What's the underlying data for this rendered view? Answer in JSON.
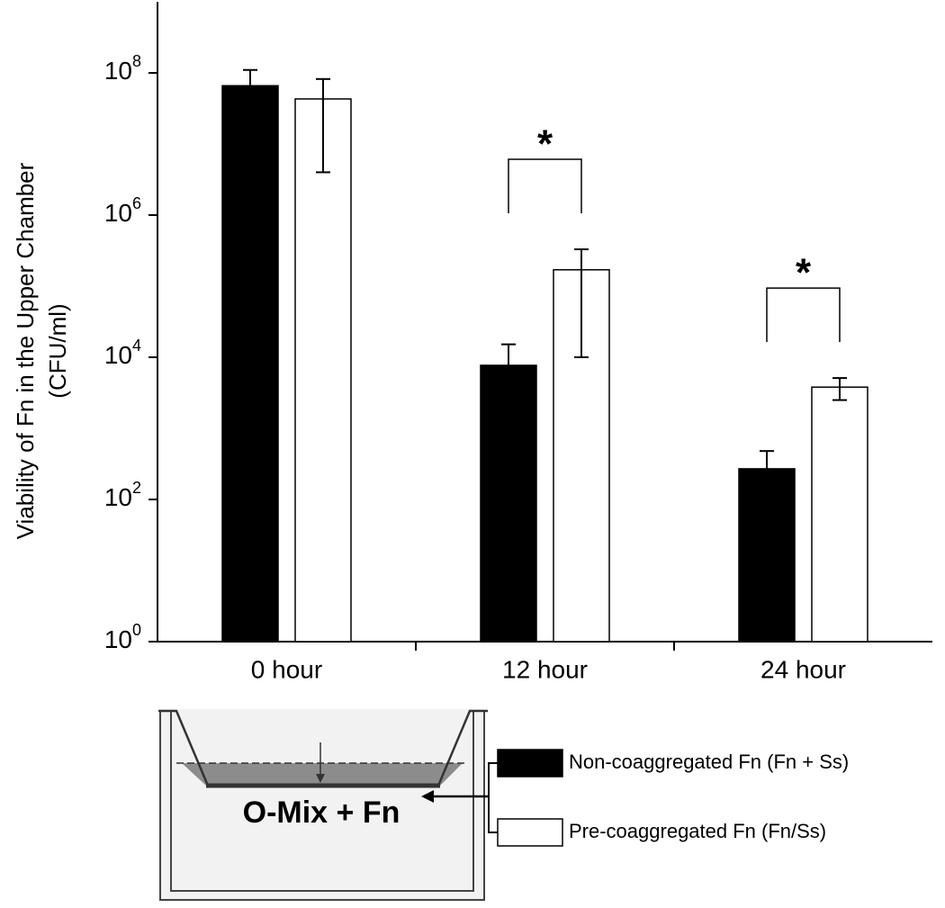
{
  "chart_data": {
    "type": "bar",
    "y_label": [
      "Viability of Fn in the Upper Chamber",
      "(CFU/ml)"
    ],
    "categories": [
      "0 hour",
      "12 hour",
      "24 hour"
    ],
    "log_scale": true,
    "ylim": [
      1,
      1000000000
    ],
    "yticks": [
      {
        "value": 1,
        "label": "10^0"
      },
      {
        "value": 100,
        "label": "10^2"
      },
      {
        "value": 10000,
        "label": "10^4"
      },
      {
        "value": 1000000,
        "label": "10^6"
      },
      {
        "value": 100000000,
        "label": "10^8"
      }
    ],
    "series": [
      {
        "name": "Non-coaggregated Fn (Fn + Ss)",
        "color": "#000000",
        "values": [
          66000000,
          7700,
          270
        ],
        "errors": [
          44000000,
          7500,
          210
        ]
      },
      {
        "name": "Pre-coaggregated Fn (Fn/Ss)",
        "color": "#ffffff",
        "values": [
          43000000,
          170000,
          3800
        ],
        "errors": [
          39000000,
          160000,
          1300
        ]
      }
    ],
    "annotations": [
      {
        "text": "*",
        "category": "12 hour"
      },
      {
        "text": "*",
        "category": "24 hour"
      }
    ]
  },
  "diagram": {
    "label": "O-Mix + Fn"
  }
}
